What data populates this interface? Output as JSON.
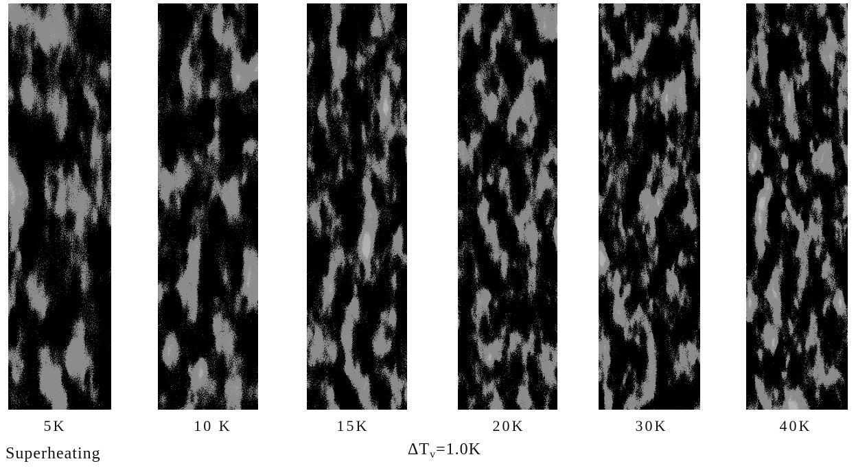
{
  "panels": [
    {
      "label": "5K"
    },
    {
      "label": "10 K"
    },
    {
      "label": "15K"
    },
    {
      "label": "20K"
    },
    {
      "label": "30K"
    },
    {
      "label": "40K"
    }
  ],
  "caption": "Superheating",
  "condition": {
    "symbol": "ΔT",
    "subscript": "v",
    "rest": "=1.0K"
  }
}
